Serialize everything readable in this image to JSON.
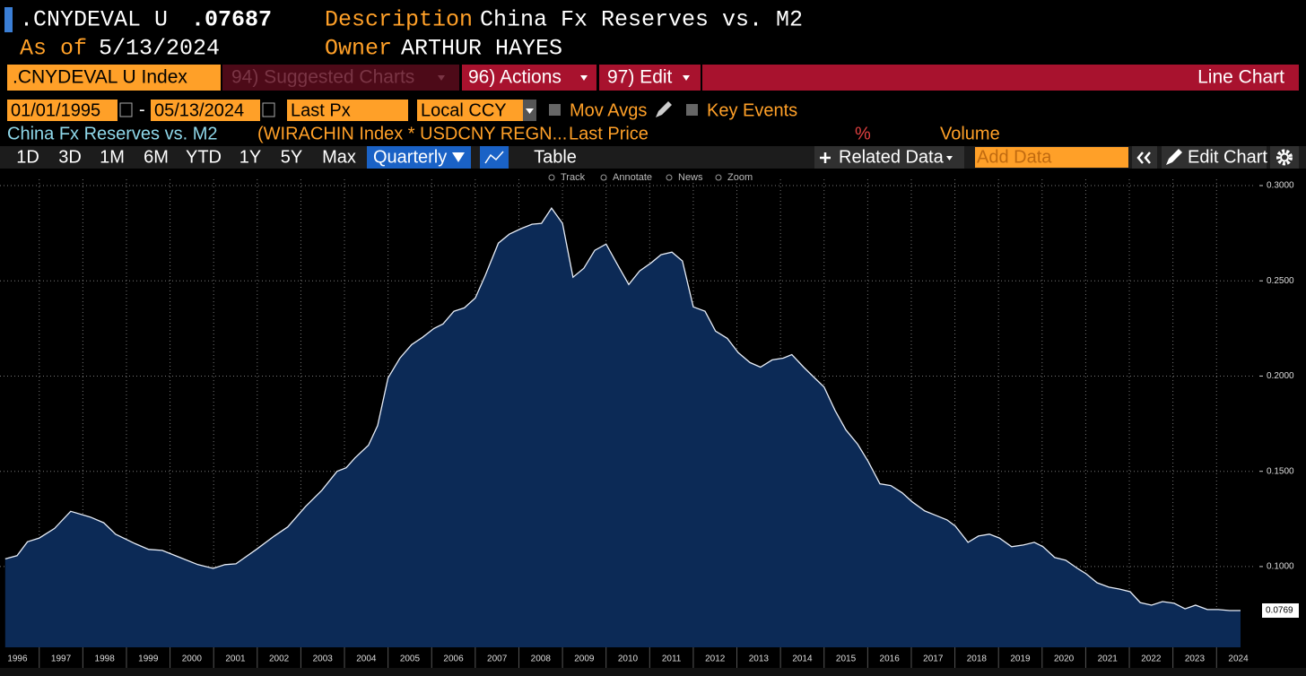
{
  "header": {
    "ticker": ".CNYDEVAL U",
    "last_value": ".07687",
    "description_label": "Description",
    "description": "China Fx Reserves vs. M2",
    "as_of_label": "As of",
    "as_of": "5/13/2024",
    "owner_label": "Owner",
    "owner": "ARTHUR HAYES"
  },
  "menu": {
    "security": ".CNYDEVAL U Index",
    "suggested": "94) Suggested Charts",
    "actions": "96) Actions",
    "edit": "97) Edit",
    "chart_kind": "Line Chart"
  },
  "controls": {
    "start_date": "01/01/1995",
    "date_separator": "-",
    "end_date": "05/13/2024",
    "field": "Last Px",
    "currency": "Local CCY",
    "mov_avgs": "Mov Avgs",
    "key_events": "Key Events"
  },
  "legend": {
    "name": "China Fx Reserves vs. M2",
    "formula": "(WIRACHIN Index * USDCNY REGN...",
    "field": "Last Price",
    "percent": "%",
    "volume": "Volume"
  },
  "toolbar": {
    "periods": [
      "1D",
      "3D",
      "1M",
      "6M",
      "YTD",
      "1Y",
      "5Y",
      "Max"
    ],
    "frequency": "Quarterly",
    "table": "Table",
    "related": "Related Data",
    "add_data": "Add Data",
    "edit_chart": "Edit Chart"
  },
  "tools": [
    "Track",
    "Annotate",
    "News",
    "Zoom"
  ],
  "chart_data": {
    "type": "area",
    "color": "#0c2a56",
    "line_color": "#e8eef8",
    "grid": true,
    "x": [
      1996.22,
      1996.49,
      1996.73,
      1997.0,
      1997.35,
      1997.72,
      1998.17,
      1998.48,
      1998.75,
      1999.2,
      1999.51,
      1999.82,
      2000.23,
      2000.64,
      2000.99,
      2001.26,
      2001.51,
      2001.98,
      2002.39,
      2002.7,
      2003.11,
      2003.48,
      2003.83,
      2004.04,
      2004.24,
      2004.55,
      2004.76,
      2005.0,
      2005.27,
      2005.54,
      2005.79,
      2006.05,
      2006.26,
      2006.51,
      2006.75,
      2007.0,
      2007.23,
      2007.53,
      2007.78,
      2008.05,
      2008.3,
      2008.52,
      2008.75,
      2009.0,
      2009.24,
      2009.49,
      2009.74,
      2010.0,
      2010.25,
      2010.52,
      2010.77,
      2011.03,
      2011.26,
      2011.51,
      2011.75,
      2012.0,
      2012.27,
      2012.51,
      2012.78,
      2013.03,
      2013.3,
      2013.54,
      2013.81,
      2014.06,
      2014.26,
      2014.53,
      2014.74,
      2015.0,
      2015.25,
      2015.5,
      2015.77,
      2016.01,
      2016.28,
      2016.53,
      2016.79,
      2017.02,
      2017.31,
      2017.56,
      2017.82,
      2018.01,
      2018.3,
      2018.54,
      2018.79,
      2019.02,
      2019.3,
      2019.57,
      2019.82,
      2020.02,
      2020.29,
      2020.54,
      2020.81,
      2021.01,
      2021.26,
      2021.53,
      2021.77,
      2022.02,
      2022.25,
      2022.51,
      2022.76,
      2023.03,
      2023.28,
      2023.52,
      2023.79,
      2024.04,
      2024.3,
      2024.55
    ],
    "values": [
      0.104,
      0.1057,
      0.113,
      0.115,
      0.12,
      0.129,
      0.126,
      0.123,
      0.117,
      0.112,
      0.109,
      0.1085,
      0.1047,
      0.101,
      0.099,
      0.101,
      0.1014,
      0.109,
      0.116,
      0.1208,
      0.1316,
      0.14,
      0.15,
      0.1519,
      0.157,
      0.1637,
      0.174,
      0.199,
      0.2094,
      0.2165,
      0.2203,
      0.225,
      0.2274,
      0.234,
      0.2358,
      0.241,
      0.2528,
      0.2698,
      0.2745,
      0.2774,
      0.2797,
      0.2802,
      0.2882,
      0.2802,
      0.2519,
      0.2566,
      0.266,
      0.2693,
      0.259,
      0.2481,
      0.2552,
      0.2594,
      0.2637,
      0.2651,
      0.2604,
      0.2363,
      0.234,
      0.2236,
      0.2198,
      0.2123,
      0.2071,
      0.2047,
      0.2085,
      0.2094,
      0.2113,
      0.2047,
      0.2,
      0.1943,
      0.182,
      0.1717,
      0.1642,
      0.1552,
      0.1434,
      0.1425,
      0.1387,
      0.134,
      0.1292,
      0.1269,
      0.1245,
      0.1212,
      0.1127,
      0.116,
      0.117,
      0.115,
      0.1104,
      0.1113,
      0.1127,
      0.1104,
      0.1047,
      0.1033,
      0.099,
      0.0962,
      0.0915,
      0.0892,
      0.0882,
      0.0868,
      0.0811,
      0.0797,
      0.0816,
      0.0807,
      0.0778,
      0.0797,
      0.0774,
      0.0774,
      0.0769,
      0.0769
    ],
    "last_value": 0.0769,
    "xlim": [
      1996.1,
      2024.9
    ],
    "xticks": [
      1996,
      1997,
      1998,
      1999,
      2000,
      2001,
      2002,
      2003,
      2004,
      2005,
      2006,
      2007,
      2008,
      2009,
      2010,
      2011,
      2012,
      2013,
      2014,
      2015,
      2016,
      2017,
      2018,
      2019,
      2020,
      2021,
      2022,
      2023,
      2024
    ],
    "ylim": [
      0.0576,
      0.3033
    ],
    "yticks": [
      {
        "value": 0.1,
        "label": "0.1000"
      },
      {
        "value": 0.15,
        "label": "0.1500"
      },
      {
        "value": 0.2,
        "label": "0.2000"
      },
      {
        "value": 0.25,
        "label": "0.2500"
      },
      {
        "value": 0.3,
        "label": "0.3000"
      }
    ]
  }
}
